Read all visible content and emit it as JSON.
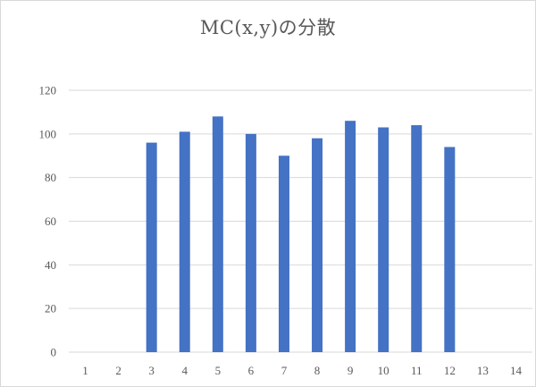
{
  "chart_data": {
    "type": "bar",
    "title": "MC(x,y)の分散",
    "xlabel": "",
    "ylabel": "",
    "categories": [
      "1",
      "2",
      "3",
      "4",
      "5",
      "6",
      "7",
      "8",
      "9",
      "10",
      "11",
      "12",
      "13",
      "14"
    ],
    "values": [
      null,
      null,
      96,
      101,
      108,
      100,
      90,
      98,
      106,
      103,
      104,
      94,
      null,
      null
    ],
    "ylim": [
      0,
      120
    ],
    "yticks": [
      0,
      20,
      40,
      60,
      80,
      100,
      120
    ],
    "grid": true,
    "legend": "none",
    "bar_color": "#4472C4",
    "grid_color": "#d9d9d9"
  }
}
